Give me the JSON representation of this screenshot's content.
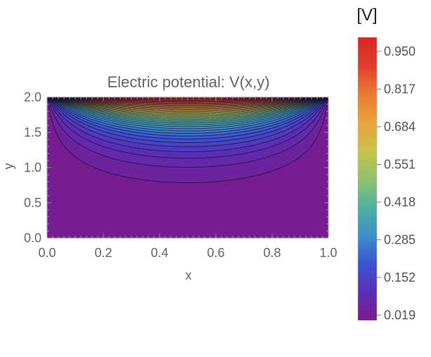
{
  "chart_data": {
    "type": "heatmap",
    "title": "Electric potential: V(x,y)",
    "xlabel": "x",
    "ylabel": "y",
    "xlim": [
      0,
      1
    ],
    "ylim": [
      0,
      2
    ],
    "x_ticks": [
      "0.0",
      "0.2",
      "0.4",
      "0.6",
      "0.8",
      "1.0"
    ],
    "y_ticks": [
      "0.0",
      "0.5",
      "1.0",
      "1.5",
      "2.0"
    ],
    "colorbar": {
      "label": "[V]",
      "ticks": [
        "0.950",
        "0.817",
        "0.684",
        "0.551",
        "0.418",
        "0.285",
        "0.152",
        "0.019"
      ],
      "range": [
        0.0,
        1.0
      ],
      "colormap": [
        "#7a1a8c",
        "#5a2fb8",
        "#3a55d2",
        "#3c90c9",
        "#4fb0a0",
        "#8fc36a",
        "#c8c24a",
        "#e9a23b",
        "#ea7a33",
        "#e03f2c",
        "#d82623"
      ]
    },
    "boundary_conditions": {
      "top": 1,
      "bottom": 0,
      "left": 0,
      "right": 0
    },
    "contour_levels": 36,
    "grid": false
  }
}
